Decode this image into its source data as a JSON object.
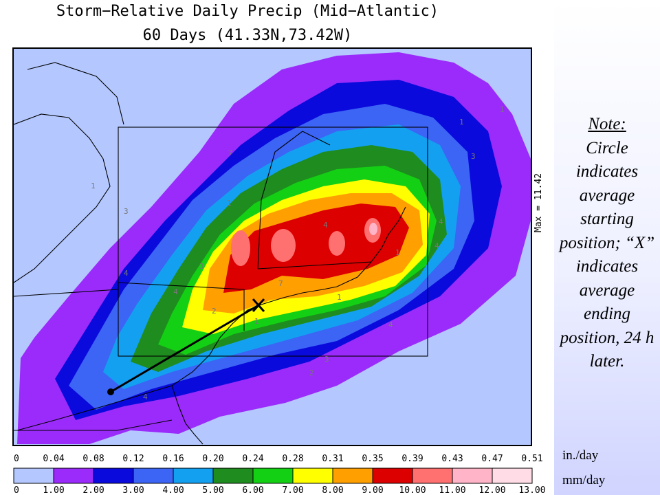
{
  "title": {
    "line1": "Storm−Relative Daily Precip (Mid−Atlantic)",
    "line2": "60 Days (41.33N,73.42W)"
  },
  "map": {
    "max_label": "Max = 11.42",
    "start_marker": "circle-marker",
    "end_marker": "x-marker",
    "contour_labels": [
      "1",
      "1",
      "3",
      "4",
      "1",
      "3",
      "4",
      "4",
      "7",
      "4",
      "4",
      "1",
      "3",
      "2",
      "3",
      "2",
      "4",
      "1",
      "7",
      "1",
      "4",
      "1"
    ]
  },
  "note": {
    "heading": "Note:",
    "body": "Circle indicates average starting position; “X” indicates average ending position, 24 h later."
  },
  "legend": {
    "colors": [
      "#b4c8ff",
      "#9a2bfa",
      "#0a0adc",
      "#3c64f5",
      "#14a0f0",
      "#1e8c1e",
      "#14d014",
      "#ffff00",
      "#ffa000",
      "#dc0000",
      "#ff7070",
      "#ffb4c8",
      "#ffdce6"
    ],
    "in_ticks": [
      "0",
      "0.04",
      "0.08",
      "0.12",
      "0.16",
      "0.20",
      "0.24",
      "0.28",
      "0.31",
      "0.35",
      "0.39",
      "0.43",
      "0.47",
      "0.51"
    ],
    "mm_ticks": [
      "0",
      "1.00",
      "2.00",
      "3.00",
      "4.00",
      "5.00",
      "6.00",
      "7.00",
      "8.00",
      "9.00",
      "10.00",
      "11.00",
      "12.00",
      "13.00"
    ],
    "in_unit": "in./day",
    "mm_unit": "mm/day"
  }
}
